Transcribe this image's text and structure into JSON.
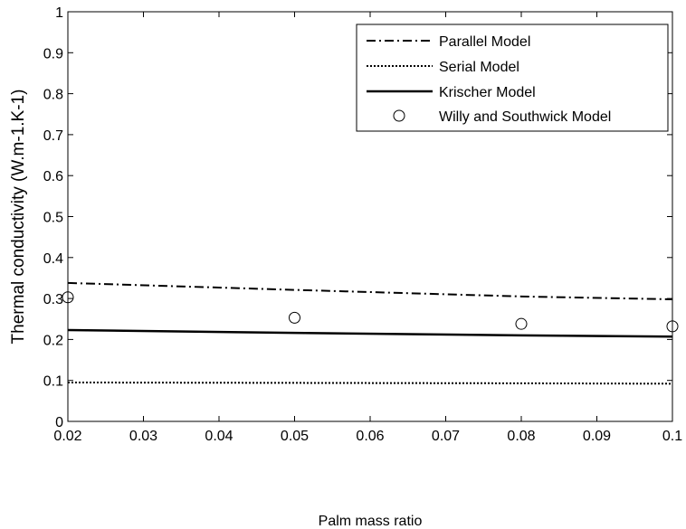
{
  "chart_data": {
    "type": "line",
    "xlabel": "Palm mass ratio",
    "ylabel": "Thermal conductivity (W.m-1.K-1)",
    "xlim": [
      0.02,
      0.1
    ],
    "ylim": [
      0,
      1
    ],
    "xticks": [
      0.02,
      0.03,
      0.04,
      0.05,
      0.06,
      0.07,
      0.08,
      0.09,
      0.1
    ],
    "xtick_labels": [
      "0.02",
      "0.03",
      "0.04",
      "0.05",
      "0.06",
      "0.07",
      "0.08",
      "0.09",
      "0.1"
    ],
    "yticks": [
      0,
      0.1,
      0.2,
      0.3,
      0.4,
      0.5,
      0.6,
      0.7,
      0.8,
      0.9,
      1
    ],
    "ytick_labels": [
      "0",
      "0.1",
      "0.2",
      "0.3",
      "0.4",
      "0.5",
      "0.6",
      "0.7",
      "0.8",
      "0.9",
      "1"
    ],
    "grid": false,
    "legend_position": "top-right",
    "series": [
      {
        "name": "Parallel Model",
        "style": "dash-dot",
        "marker": "none",
        "color": "#000000",
        "x": [
          0.02,
          0.05,
          0.08,
          0.1
        ],
        "y": [
          0.338,
          0.321,
          0.305,
          0.298
        ]
      },
      {
        "name": "Serial Model",
        "style": "dotted",
        "marker": "none",
        "color": "#000000",
        "x": [
          0.02,
          0.05,
          0.08,
          0.1
        ],
        "y": [
          0.095,
          0.094,
          0.093,
          0.092
        ]
      },
      {
        "name": "Krischer Model",
        "style": "solid",
        "marker": "none",
        "color": "#000000",
        "x": [
          0.02,
          0.05,
          0.08,
          0.1
        ],
        "y": [
          0.223,
          0.216,
          0.21,
          0.207
        ]
      },
      {
        "name": "Willy and Southwick Model",
        "style": "none",
        "marker": "circle",
        "color": "#000000",
        "x": [
          0.02,
          0.05,
          0.08,
          0.1
        ],
        "y": [
          0.303,
          0.253,
          0.238,
          0.232
        ]
      }
    ]
  }
}
